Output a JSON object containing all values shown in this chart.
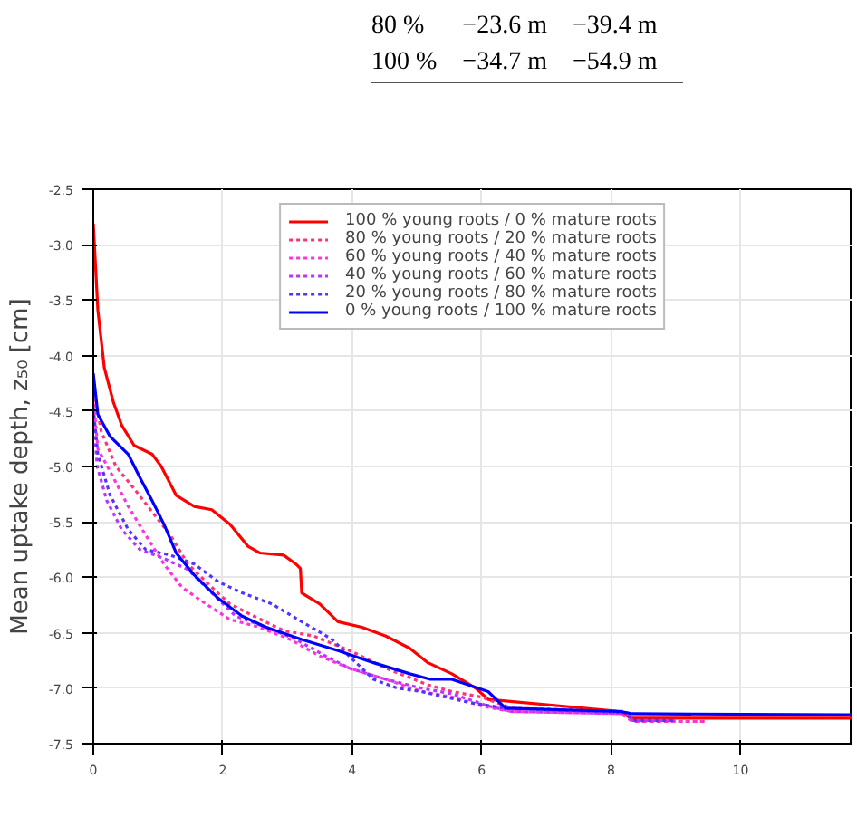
{
  "chart_data": {
    "type": "line",
    "ylabel": "Mean uptake depth, z₅₀ [cm]",
    "annotations": [
      "80 %",
      "−23.6 m",
      "−39.4 m",
      "100 %",
      "−34.7 m",
      "−54.9 m"
    ],
    "xlim": [
      0,
      11.73
    ],
    "xticks": [
      0,
      2,
      4,
      6,
      8,
      10
    ],
    "ylim": [
      -7.5,
      -2.5
    ],
    "yticks": [
      {
        "value": -2.5,
        "label": "-2.5"
      },
      {
        "value": -3,
        "label": "-3.0"
      },
      {
        "value": -3.5,
        "label": "-3.5"
      },
      {
        "value": -4,
        "label": "-4.0"
      },
      {
        "value": -4.5,
        "label": "-4.5"
      },
      {
        "value": -5,
        "label": "-5.0"
      },
      {
        "value": -5.5,
        "label": "-5.5"
      },
      {
        "value": -6,
        "label": "-6.0"
      },
      {
        "value": -6.5,
        "label": "-6.5"
      },
      {
        "value": -7,
        "label": "-7.0"
      },
      {
        "value": -7.5,
        "label": "-7.5"
      }
    ],
    "grid": true,
    "legend": "top",
    "marker": "none",
    "series": [
      {
        "name": "100 % young roots / 0 % mature roots",
        "color": "#ff0000",
        "line_style": "solid",
        "x": [
          0,
          0.07,
          0.17,
          0.31,
          0.44,
          0.63,
          0.91,
          1.05,
          1.28,
          1.56,
          1.83,
          2.11,
          2.39,
          2.57,
          2.94,
          3.13,
          3.2,
          3.22,
          3.5,
          3.78,
          4.15,
          4.52,
          4.89,
          5.17,
          5.54,
          5.91,
          6.1,
          8.15,
          8.3,
          11.73
        ],
        "values": [
          -2.81,
          -3.59,
          -4.11,
          -4.42,
          -4.63,
          -4.81,
          -4.89,
          -5.0,
          -5.26,
          -5.36,
          -5.39,
          -5.52,
          -5.72,
          -5.78,
          -5.8,
          -5.88,
          -5.92,
          -6.14,
          -6.24,
          -6.4,
          -6.45,
          -6.53,
          -6.64,
          -6.77,
          -6.87,
          -7.0,
          -7.1,
          -7.21,
          -7.27,
          -7.27
        ]
      },
      {
        "name": "80 % young roots / 20 % mature roots",
        "color": "#ff3377",
        "line_style": "dotted",
        "x": [
          0,
          0.12,
          0.35,
          0.63,
          0.91,
          1.19,
          1.46,
          1.83,
          2.11,
          2.48,
          2.94,
          3.41,
          3.96,
          4.52,
          5.17,
          5.54,
          6.0,
          6.46,
          8.24,
          8.33,
          9.5
        ],
        "values": [
          -4.27,
          -4.68,
          -5.0,
          -5.2,
          -5.41,
          -5.62,
          -5.88,
          -6.09,
          -6.24,
          -6.35,
          -6.48,
          -6.53,
          -6.66,
          -6.82,
          -6.97,
          -7.03,
          -7.08,
          -7.18,
          -7.21,
          -7.3,
          -7.3
        ]
      },
      {
        "name": "60 % young roots / 40 % mature roots",
        "color": "#ff33dd",
        "line_style": "dotted",
        "x": [
          0,
          0.07,
          0.31,
          0.54,
          0.81,
          1.09,
          1.37,
          1.74,
          2.11,
          2.57,
          3.04,
          3.5,
          3.96,
          4.52,
          5.07,
          5.54,
          6.0,
          6.46,
          8.15,
          8.33,
          9.42
        ],
        "values": [
          -4.37,
          -4.84,
          -5.1,
          -5.36,
          -5.62,
          -5.88,
          -6.09,
          -6.24,
          -6.38,
          -6.45,
          -6.56,
          -6.71,
          -6.82,
          -6.92,
          -7.03,
          -7.08,
          -7.16,
          -7.21,
          -7.23,
          -7.3,
          -7.3
        ]
      },
      {
        "name": "40 % young roots / 60 % mature roots",
        "color": "#bb33ff",
        "line_style": "dotted",
        "x": [
          0,
          0.06,
          0.21,
          0.44,
          0.72,
          1.09,
          1.46,
          1.83,
          2.2,
          2.67,
          3.13,
          3.59,
          3.96,
          4.52,
          5.07,
          5.54,
          6.1,
          6.46,
          8.24,
          8.33,
          8.99
        ],
        "values": [
          -4.53,
          -5.0,
          -5.31,
          -5.57,
          -5.75,
          -5.83,
          -5.93,
          -6.14,
          -6.35,
          -6.45,
          -6.56,
          -6.71,
          -6.82,
          -6.92,
          -7.0,
          -7.05,
          -7.16,
          -7.21,
          -7.23,
          -7.29,
          -7.29
        ]
      },
      {
        "name": "20 % young roots / 80 % mature roots",
        "color": "#5533ff",
        "line_style": "dotted",
        "x": [
          0,
          0.07,
          0.26,
          0.54,
          0.81,
          1.19,
          1.56,
          1.93,
          2.3,
          2.76,
          3.22,
          3.69,
          4.06,
          4.33,
          4.7,
          5.07,
          5.82,
          6.37,
          8.24,
          8.33,
          8.99
        ],
        "values": [
          -4.47,
          -4.89,
          -5.26,
          -5.57,
          -5.75,
          -5.8,
          -5.88,
          -6.04,
          -6.14,
          -6.24,
          -6.4,
          -6.56,
          -6.77,
          -6.92,
          -7.0,
          -7.03,
          -7.13,
          -7.18,
          -7.22,
          -7.29,
          -7.29
        ]
      },
      {
        "name": "0 % young roots / 100 % mature roots",
        "color": "#0000ff",
        "line_style": "solid",
        "x": [
          0,
          0.07,
          0.26,
          0.54,
          0.72,
          0.91,
          1.09,
          1.28,
          1.56,
          1.93,
          2.3,
          2.67,
          3.22,
          3.78,
          4.33,
          4.89,
          5.21,
          5.54,
          6.1,
          6.37,
          8.15,
          8.33,
          11.73
        ],
        "values": [
          -4.16,
          -4.53,
          -4.73,
          -4.89,
          -5.1,
          -5.31,
          -5.52,
          -5.78,
          -5.98,
          -6.19,
          -6.35,
          -6.45,
          -6.56,
          -6.66,
          -6.77,
          -6.87,
          -6.92,
          -6.92,
          -7.03,
          -7.18,
          -7.21,
          -7.23,
          -7.24
        ]
      }
    ]
  }
}
